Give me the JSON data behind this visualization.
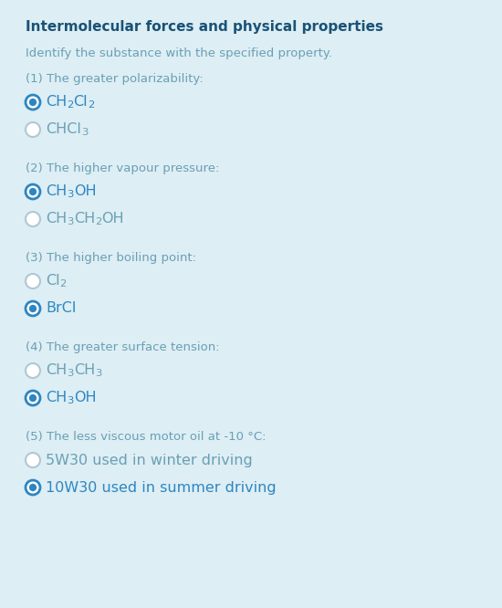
{
  "bg_color": "#ddeef4",
  "title": "Intermolecular forces and physical properties",
  "subtitle": "Identify the substance with the specified property.",
  "title_color": "#1a5276",
  "text_color": "#6a9fb5",
  "question_color": "#6a9fb5",
  "selected_color": "#2e86c1",
  "unselected_color": "#b0c8d4",
  "questions": [
    {
      "label": "(1) The greater polarizability:",
      "options": [
        {
          "text_parts": [
            [
              "CH",
              false
            ],
            [
              "2",
              true
            ],
            [
              "Cl",
              false
            ],
            [
              "2",
              true
            ]
          ],
          "selected": true
        },
        {
          "text_parts": [
            [
              "CHCl",
              false
            ],
            [
              "3",
              true
            ]
          ],
          "selected": false
        }
      ]
    },
    {
      "label": "(2) The higher vapour pressure:",
      "options": [
        {
          "text_parts": [
            [
              "CH",
              false
            ],
            [
              "3",
              true
            ],
            [
              "OH",
              false
            ]
          ],
          "selected": true
        },
        {
          "text_parts": [
            [
              "CH",
              false
            ],
            [
              "3",
              true
            ],
            [
              "CH",
              false
            ],
            [
              "2",
              true
            ],
            [
              "OH",
              false
            ]
          ],
          "selected": false
        }
      ]
    },
    {
      "label": "(3) The higher boiling point:",
      "options": [
        {
          "text_parts": [
            [
              "Cl",
              false
            ],
            [
              "2",
              true
            ]
          ],
          "selected": false
        },
        {
          "text_parts": [
            [
              "BrCl",
              false
            ]
          ],
          "selected": true
        }
      ]
    },
    {
      "label": "(4) The greater surface tension:",
      "options": [
        {
          "text_parts": [
            [
              "CH",
              false
            ],
            [
              "3",
              true
            ],
            [
              "CH",
              false
            ],
            [
              "3",
              true
            ]
          ],
          "selected": false
        },
        {
          "text_parts": [
            [
              "CH",
              false
            ],
            [
              "3",
              true
            ],
            [
              "OH",
              false
            ]
          ],
          "selected": true
        }
      ]
    },
    {
      "label": "(5) The less viscous motor oil at -10 °C:",
      "options": [
        {
          "text_parts": [
            [
              "5W30 used in winter driving",
              false
            ]
          ],
          "selected": false
        },
        {
          "text_parts": [
            [
              "10W30 used in summer driving",
              false
            ]
          ],
          "selected": true
        }
      ]
    }
  ],
  "figwidth": 5.5,
  "figheight": 6.66,
  "dpi": 100
}
